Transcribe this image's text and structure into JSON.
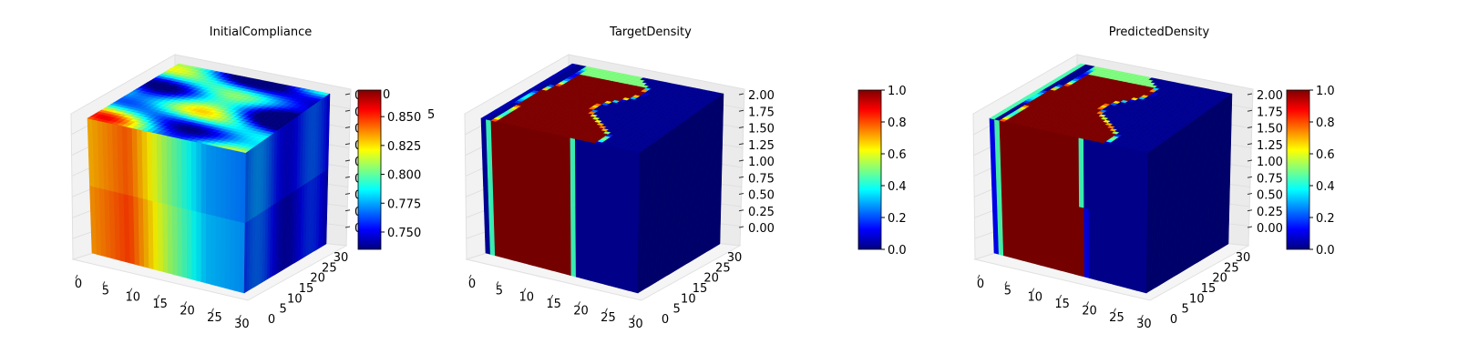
{
  "figure": {
    "colormap": "jet",
    "colormap_stops": [
      "#00007f",
      "#0000ff",
      "#007fff",
      "#00ffff",
      "#7fff7f",
      "#ffff00",
      "#ff7f00",
      "#ff0000",
      "#7f0000"
    ]
  },
  "chart_data": [
    {
      "type": "voxel-3d",
      "title": "InitialCompliance",
      "x_ticks": [
        "0",
        "5",
        "10",
        "15",
        "20",
        "25",
        "30"
      ],
      "y_ticks": [
        "0",
        "5",
        "10",
        "15",
        "20",
        "25",
        "30"
      ],
      "z_ticks": [
        "0",
        "0",
        "0",
        "0",
        "0",
        "0",
        "0",
        "0",
        "0"
      ],
      "colorbar_ticks": [
        "0.750",
        "0.775",
        "0.800",
        "0.825",
        "0.850"
      ],
      "colorbar_partial_ticks": [
        "5",
        "0"
      ],
      "colorbar_range": [
        0.735,
        0.873
      ],
      "front_face_profile_x": [
        0,
        8,
        16,
        24,
        32
      ],
      "front_face_profile_values": [
        0.835,
        0.848,
        0.81,
        0.778,
        0.772
      ],
      "top_layer_values": "smooth blobs between 0.75 and 0.86"
    },
    {
      "type": "voxel-3d",
      "title": "TargetDensity",
      "x_ticks": [
        "0",
        "5",
        "10",
        "15",
        "20",
        "25",
        "30"
      ],
      "y_ticks": [
        "0",
        "5",
        "10",
        "15",
        "20",
        "25",
        "30"
      ],
      "z_ticks": [
        "0.00",
        "0.25",
        "0.50",
        "0.75",
        "1.00",
        "1.25",
        "1.50",
        "1.75",
        "2.00"
      ],
      "colorbar_ticks": [
        "0.0",
        "0.2",
        "0.4",
        "0.6",
        "0.8",
        "1.0"
      ],
      "colorbar_range": [
        0.0,
        1.0
      ],
      "solid_band_x": [
        2,
        18
      ],
      "solid_value": 1.0,
      "void_value": 0.0
    },
    {
      "type": "voxel-3d",
      "title": "PredictedDensity",
      "x_ticks": [
        "0",
        "5",
        "10",
        "15",
        "20",
        "25",
        "30"
      ],
      "y_ticks": [
        "0",
        "5",
        "10",
        "15",
        "20",
        "25",
        "30"
      ],
      "z_ticks": [
        "0.00",
        "0.25",
        "0.50",
        "0.75",
        "1.00",
        "1.25",
        "1.50",
        "1.75",
        "2.00"
      ],
      "colorbar_ticks": [
        "0.0",
        "0.2",
        "0.4",
        "0.6",
        "0.8",
        "1.0"
      ],
      "colorbar_range": [
        0.0,
        1.0
      ],
      "solid_band_x": [
        2,
        18
      ],
      "solid_value": 1.0,
      "void_value": 0.0
    }
  ]
}
